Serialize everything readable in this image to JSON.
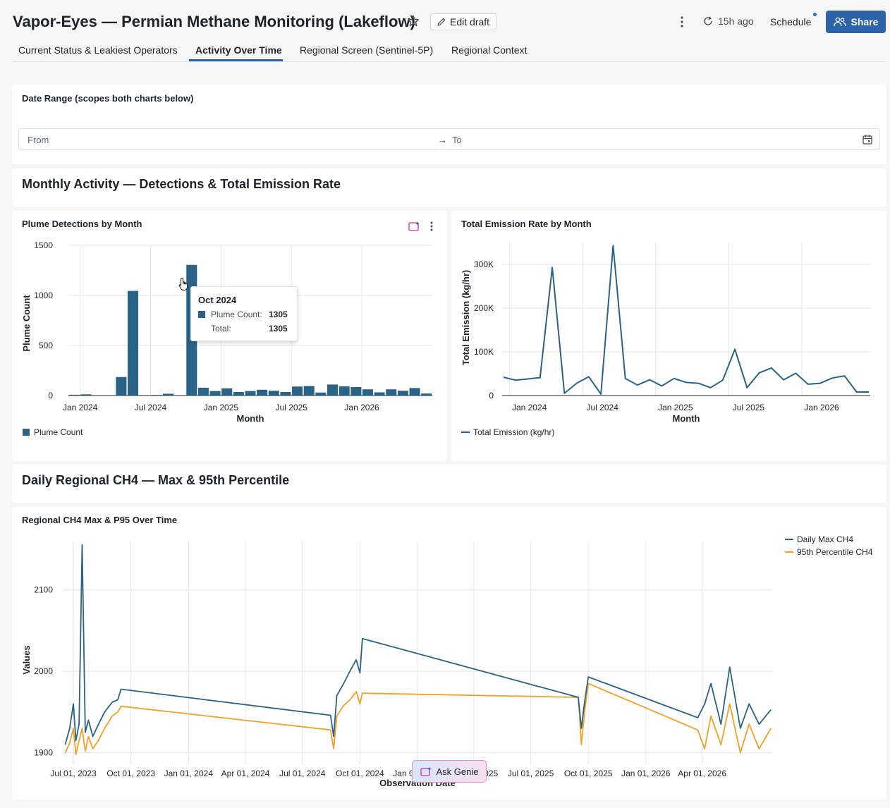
{
  "header": {
    "title": "Vapor-Eyes — Permian Methane Monitoring (Lakeflow)",
    "edit_draft": "Edit draft",
    "refresh_age": "15h ago",
    "schedule": "Schedule",
    "share": "Share"
  },
  "tabs": [
    {
      "label": "Current Status & Leakiest Operators"
    },
    {
      "label": "Activity Over Time"
    },
    {
      "label": "Regional Screen (Sentinel-5P)"
    },
    {
      "label": "Regional Context"
    }
  ],
  "date_filter": {
    "title": "Date Range (scopes both charts below)",
    "from_placeholder": "From",
    "to_placeholder": "To"
  },
  "sections": {
    "monthly": "Monthly Activity — Detections & Total Emission Rate",
    "daily": "Daily Regional CH4 — Max & 95th Percentile"
  },
  "tooltip": {
    "title": "Oct 2024",
    "series_label": "Plume Count:",
    "series_value": "1305",
    "total_label": "Total:",
    "total_value": "1305"
  },
  "ask_genie": "Ask Genie",
  "colors": {
    "primary_series": "#2b6386",
    "secondary_series": "#f0a12a",
    "accent": "#2c63a8"
  },
  "chart_data": [
    {
      "type": "bar",
      "title": "Plume Detections by Month",
      "xlabel": "Month",
      "ylabel": "Plume Count",
      "ylim": [
        0,
        1500
      ],
      "yticks": [
        "0",
        "500",
        "1000",
        "1500"
      ],
      "xticks": [
        "Jan 2024",
        "Jul 2024",
        "Jan 2025",
        "Jul 2025",
        "Jan 2026"
      ],
      "legend": [
        "Plume Count"
      ],
      "categories": [
        "2023-12",
        "2024-01",
        "2024-02",
        "2024-03",
        "2024-04",
        "2024-05",
        "2024-06",
        "2024-07",
        "2024-08",
        "2024-09",
        "2024-10",
        "2024-11",
        "2024-12",
        "2025-01",
        "2025-02",
        "2025-03",
        "2025-04",
        "2025-05",
        "2025-06",
        "2025-07",
        "2025-08",
        "2025-09",
        "2025-10",
        "2025-11",
        "2025-12",
        "2026-01",
        "2026-02",
        "2026-03",
        "2026-04",
        "2026-05",
        "2026-06"
      ],
      "values": [
        8,
        12,
        0,
        0,
        185,
        1045,
        0,
        6,
        18,
        0,
        1305,
        78,
        45,
        72,
        35,
        45,
        58,
        48,
        35,
        90,
        95,
        30,
        110,
        92,
        85,
        62,
        32,
        62,
        48,
        75,
        20
      ]
    },
    {
      "type": "line",
      "title": "Total Emission Rate by Month",
      "xlabel": "Month",
      "ylabel": "Total Emission (kg/hr)",
      "ylim": [
        0,
        350000
      ],
      "yticks": [
        "0",
        "100K",
        "200K",
        "300K"
      ],
      "xticks": [
        "Jan 2024",
        "Jul 2024",
        "Jan 2025",
        "Jul 2025",
        "Jan 2026"
      ],
      "legend": [
        "Total Emission (kg/hr)"
      ],
      "x": [
        "2023-12",
        "2024-01",
        "2024-03",
        "2024-04",
        "2024-05",
        "2024-06",
        "2024-07",
        "2024-08",
        "2024-09",
        "2024-10",
        "2024-11",
        "2024-12",
        "2025-01",
        "2025-02",
        "2025-03",
        "2025-04",
        "2025-05",
        "2025-06",
        "2025-07",
        "2025-08",
        "2025-09",
        "2025-10",
        "2025-11",
        "2025-12",
        "2026-01",
        "2026-02",
        "2026-03",
        "2026-04",
        "2026-05",
        "2026-06"
      ],
      "values": [
        42000,
        35000,
        41000,
        293000,
        5000,
        28000,
        43000,
        3000,
        343000,
        39000,
        24000,
        36000,
        22000,
        39000,
        30000,
        28000,
        18000,
        35000,
        106000,
        18000,
        52000,
        63000,
        36000,
        51000,
        26000,
        28000,
        40000,
        45000,
        8000,
        8000
      ]
    },
    {
      "type": "line",
      "title": "Regional CH4 Max & P95 Over Time",
      "xlabel": "Observation Date",
      "ylabel": "Values",
      "ylim": [
        1885,
        2160
      ],
      "yticks": [
        "1900",
        "2000",
        "2100"
      ],
      "xticks": [
        "Jul 01, 2023",
        "Oct 01, 2023",
        "Jan 01, 2024",
        "Apr 01, 2024",
        "Jul 01, 2024",
        "Oct 01, 2024",
        "Jan 01, 2025",
        "Apr 01, 2025",
        "Jul 01, 2025",
        "Oct 01, 2025",
        "Jan 01, 2026",
        "Apr 01, 2026"
      ],
      "legend_position": "top-right",
      "series": [
        {
          "name": "Daily Max CH4",
          "x": [
            "2023-06-18",
            "2023-06-25",
            "2023-07-01",
            "2023-07-05",
            "2023-07-10",
            "2023-07-15",
            "2023-07-20",
            "2023-07-25",
            "2023-08-01",
            "2023-08-10",
            "2023-08-20",
            "2023-09-01",
            "2023-09-10",
            "2023-09-15",
            "2024-08-15",
            "2024-08-20",
            "2024-08-25",
            "2024-09-05",
            "2024-09-15",
            "2024-09-25",
            "2024-10-01",
            "2024-10-05",
            "2025-09-15",
            "2025-09-20",
            "2025-09-25",
            "2025-10-01",
            "2026-03-25",
            "2026-04-05",
            "2026-04-15",
            "2026-05-01",
            "2026-05-15",
            "2026-06-01",
            "2026-06-15",
            "2026-07-01",
            "2026-07-20"
          ],
          "values": [
            1910,
            1930,
            1960,
            1915,
            1935,
            2155,
            1925,
            1940,
            1920,
            1935,
            1950,
            1962,
            1965,
            1978,
            1946,
            1920,
            1970,
            1985,
            2000,
            2014,
            1998,
            2040,
            1968,
            1930,
            1962,
            1993,
            1943,
            1960,
            1985,
            1935,
            2005,
            1930,
            1960,
            1935,
            1953
          ]
        },
        {
          "name": "95th Percentile CH4",
          "x": [
            "2023-06-18",
            "2023-06-25",
            "2023-07-01",
            "2023-07-05",
            "2023-07-10",
            "2023-07-15",
            "2023-07-20",
            "2023-07-25",
            "2023-08-01",
            "2023-08-10",
            "2023-08-20",
            "2023-09-01",
            "2023-09-10",
            "2023-09-15",
            "2024-08-15",
            "2024-08-20",
            "2024-08-25",
            "2024-09-05",
            "2024-09-15",
            "2024-09-25",
            "2024-10-01",
            "2024-10-05",
            "2025-09-15",
            "2025-09-20",
            "2025-09-25",
            "2025-10-01",
            "2026-03-25",
            "2026-04-05",
            "2026-04-15",
            "2026-05-01",
            "2026-05-15",
            "2026-06-01",
            "2026-06-15",
            "2026-07-01",
            "2026-07-20"
          ],
          "values": [
            1900,
            1912,
            1930,
            1898,
            1915,
            1930,
            1902,
            1920,
            1905,
            1915,
            1930,
            1945,
            1950,
            1957,
            1928,
            1905,
            1945,
            1958,
            1965,
            1975,
            1960,
            1973,
            1968,
            1910,
            1950,
            1985,
            1928,
            1905,
            1945,
            1910,
            1960,
            1900,
            1935,
            1905,
            1930
          ]
        }
      ]
    }
  ]
}
